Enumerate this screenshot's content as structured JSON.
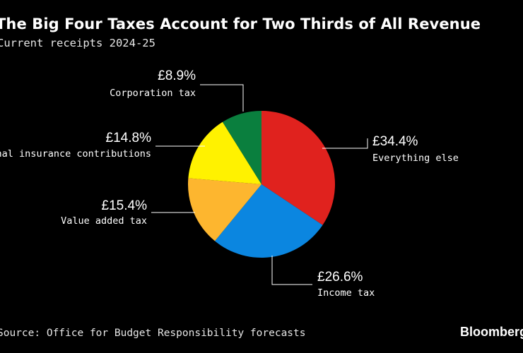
{
  "chart_data": {
    "type": "pie",
    "title": "The Big Four Taxes Account for Two Thirds of All Revenue",
    "subtitle": "Current receipts 2024-25",
    "source": "Source: Office for Budget Responsibility forecasts",
    "brand": "Bloomberg",
    "slices": [
      {
        "name": "Everything else",
        "value": 34.4,
        "label": "£34.4%",
        "color": "#e0221e"
      },
      {
        "name": "Income tax",
        "value": 26.6,
        "label": "£26.6%",
        "color": "#0b86e0"
      },
      {
        "name": "Value added tax",
        "value": 15.4,
        "label": "£15.4%",
        "color": "#fdb62f"
      },
      {
        "name": "National insurance contributions",
        "value": 14.8,
        "label": "£14.8%",
        "color": "#fff200"
      },
      {
        "name": "Corporation tax",
        "value": 8.9,
        "label": "£8.9%",
        "color": "#0a7f3e"
      }
    ]
  }
}
